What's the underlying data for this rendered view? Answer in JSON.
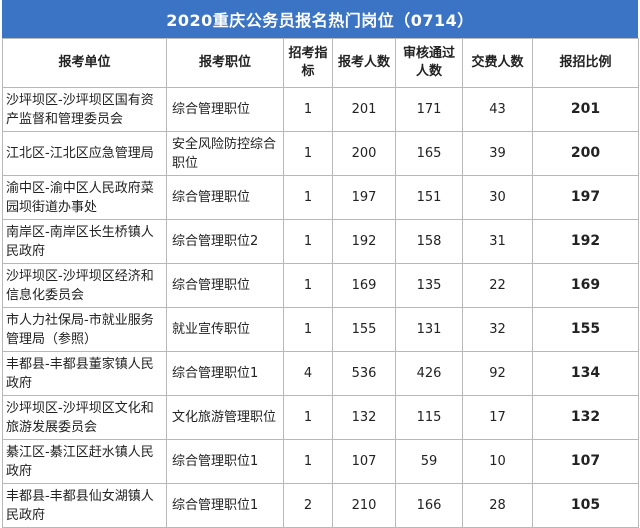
{
  "title": "2020重庆公务员报名热门岗位（0714）",
  "headers": [
    "报考单位",
    "报考职位",
    "招考指标",
    "报考人数",
    "审核通过人数",
    "交费人数",
    "报招比例"
  ],
  "rows": [
    {
      "unit": "沙坪坝区-沙坪坝区国有资产监督和管理委员会",
      "position": "综合管理职位",
      "quota": "1",
      "applicants": "201",
      "approved": "171",
      "paid": "43",
      "ratio": "201"
    },
    {
      "unit": "江北区-江北区应急管理局",
      "position": "安全风险防控综合职位",
      "quota": "1",
      "applicants": "200",
      "approved": "165",
      "paid": "39",
      "ratio": "200"
    },
    {
      "unit": "渝中区-渝中区人民政府菜园坝街道办事处",
      "position": "综合管理职位",
      "quota": "1",
      "applicants": "197",
      "approved": "151",
      "paid": "30",
      "ratio": "197"
    },
    {
      "unit": "南岸区-南岸区长生桥镇人民政府",
      "position": "综合管理职位2",
      "quota": "1",
      "applicants": "192",
      "approved": "158",
      "paid": "31",
      "ratio": "192"
    },
    {
      "unit": "沙坪坝区-沙坪坝区经济和信息化委员会",
      "position": "综合管理职位",
      "quota": "1",
      "applicants": "169",
      "approved": "135",
      "paid": "22",
      "ratio": "169"
    },
    {
      "unit": "市人力社保局-市就业服务管理局（参照）",
      "position": "就业宣传职位",
      "quota": "1",
      "applicants": "155",
      "approved": "131",
      "paid": "32",
      "ratio": "155"
    },
    {
      "unit": "丰都县-丰都县董家镇人民政府",
      "position": "综合管理职位1",
      "quota": "4",
      "applicants": "536",
      "approved": "426",
      "paid": "92",
      "ratio": "134"
    },
    {
      "unit": "沙坪坝区-沙坪坝区文化和旅游发展委员会",
      "position": "文化旅游管理职位",
      "quota": "1",
      "applicants": "132",
      "approved": "115",
      "paid": "17",
      "ratio": "132"
    },
    {
      "unit": "綦江区-綦江区赶水镇人民政府",
      "position": "综合管理职位1",
      "quota": "1",
      "applicants": "107",
      "approved": "59",
      "paid": "10",
      "ratio": "107"
    },
    {
      "unit": "丰都县-丰都县仙女湖镇人民政府",
      "position": "综合管理职位1",
      "quota": "2",
      "applicants": "210",
      "approved": "166",
      "paid": "28",
      "ratio": "105"
    }
  ]
}
